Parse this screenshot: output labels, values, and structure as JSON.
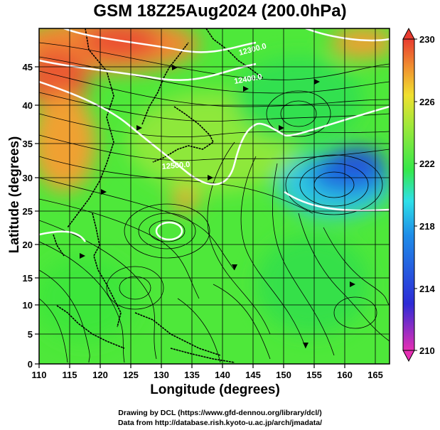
{
  "title": "GSM 18Z25Aug2024 (200.0hPa)",
  "x_axis": {
    "label": "Longitude (degrees)",
    "ticks": [
      "110",
      "115",
      "120",
      "125",
      "130",
      "135",
      "140",
      "145",
      "150",
      "155",
      "160",
      "165"
    ]
  },
  "y_axis": {
    "label": "Latitude  (degrees)",
    "ticks": [
      "0",
      "5",
      "10",
      "15",
      "20",
      "25",
      "30",
      "35",
      "40",
      "45"
    ]
  },
  "colorbar": {
    "ticks": [
      "210",
      "214",
      "218",
      "222",
      "226",
      "230"
    ],
    "colors": [
      "#e62fb4",
      "#2d2bd6",
      "#1e8de8",
      "#2ee0e8",
      "#35e84a",
      "#9ee83a",
      "#f0e030",
      "#f09030",
      "#e83c30"
    ]
  },
  "contour_labels": [
    "12300.0",
    "12400.0",
    "12500.0"
  ],
  "credits": {
    "line1": "Drawing by DCL (https://www.gfd-dennou.org/library/dcl/)",
    "line2": "Data from http://database.rish.kyoto-u.ac.jp/arch/jmadata/"
  }
}
